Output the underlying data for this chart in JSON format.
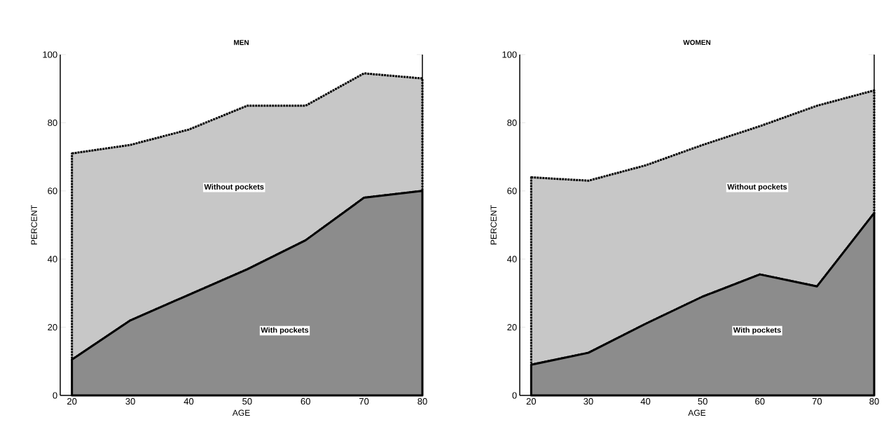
{
  "chart_data": [
    {
      "type": "area",
      "title": "MEN",
      "xlabel": "AGE",
      "ylabel": "PERCENT",
      "stacked": true,
      "x": [
        20,
        30,
        40,
        50,
        60,
        70,
        80
      ],
      "xlim": [
        18,
        80
      ],
      "ylim": [
        0,
        100
      ],
      "xticks": [
        20,
        30,
        40,
        50,
        60,
        70,
        80
      ],
      "yticks": [
        0,
        20,
        40,
        60,
        80,
        100
      ],
      "series": [
        {
          "name": "With pockets",
          "color": "#000000",
          "line_style": "solid",
          "values": [
            10.5,
            22,
            29.5,
            37,
            45.5,
            58,
            60
          ]
        },
        {
          "name": "Without pockets",
          "color": "#000000",
          "line_style": "dotted",
          "values": [
            60.5,
            51.5,
            48.5,
            48,
            39.5,
            36.5,
            33
          ]
        }
      ]
    },
    {
      "type": "area",
      "title": "WOMEN",
      "xlabel": "AGE",
      "ylabel": "PERCENT",
      "stacked": true,
      "x": [
        20,
        30,
        40,
        50,
        60,
        70,
        80
      ],
      "xlim": [
        18,
        80
      ],
      "ylim": [
        0,
        100
      ],
      "xticks": [
        20,
        30,
        40,
        50,
        60,
        70,
        80
      ],
      "yticks": [
        0,
        20,
        40,
        60,
        80,
        100
      ],
      "series": [
        {
          "name": "With pockets",
          "color": "#000000",
          "line_style": "solid",
          "values": [
            9,
            12.5,
            21,
            29,
            35.5,
            32,
            53.5
          ]
        },
        {
          "name": "Without pockets",
          "color": "#000000",
          "line_style": "dotted",
          "values": [
            55,
            50.5,
            46.5,
            44.5,
            43.5,
            53,
            36
          ]
        }
      ]
    }
  ]
}
